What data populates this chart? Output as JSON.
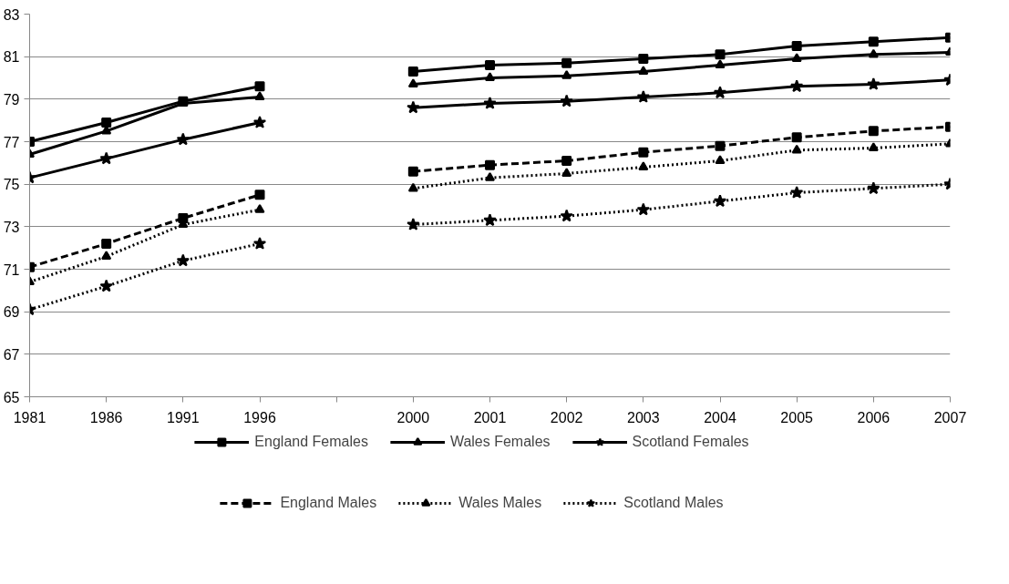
{
  "chart_data": {
    "type": "line",
    "categories": [
      "1981",
      "1986",
      "1991",
      "1996",
      null,
      "2000",
      "2001",
      "2002",
      "2003",
      "2004",
      "2005",
      "2006",
      "2007"
    ],
    "ylim": [
      65,
      83
    ],
    "yticks": [
      65,
      67,
      69,
      71,
      73,
      75,
      77,
      79,
      81,
      83
    ],
    "grid": "y",
    "legend": "bottom",
    "series": [
      {
        "name": "England Females",
        "color": "#000000",
        "marker": "square",
        "line_style": "solid",
        "values": [
          77.0,
          77.9,
          78.9,
          79.6,
          null,
          80.3,
          80.6,
          80.7,
          80.9,
          81.1,
          81.5,
          81.7,
          81.9
        ]
      },
      {
        "name": "Wales Females",
        "color": "#000000",
        "marker": "triangle",
        "line_style": "solid",
        "values": [
          76.4,
          77.5,
          78.8,
          79.1,
          null,
          79.7,
          80.0,
          80.1,
          80.3,
          80.6,
          80.9,
          81.1,
          81.2
        ]
      },
      {
        "name": "Scotland Females",
        "color": "#000000",
        "marker": "star",
        "line_style": "solid",
        "values": [
          75.3,
          76.2,
          77.1,
          77.9,
          null,
          78.6,
          78.8,
          78.9,
          79.1,
          79.3,
          79.6,
          79.7,
          79.9
        ]
      },
      {
        "name": "England Males",
        "color": "#000000",
        "marker": "square",
        "line_style": "dashed",
        "values": [
          71.1,
          72.2,
          73.4,
          74.5,
          null,
          75.6,
          75.9,
          76.1,
          76.5,
          76.8,
          77.2,
          77.5,
          77.7
        ]
      },
      {
        "name": "Wales Males",
        "color": "#000000",
        "marker": "triangle",
        "line_style": "dotted",
        "values": [
          70.4,
          71.6,
          73.1,
          73.8,
          null,
          74.8,
          75.3,
          75.5,
          75.8,
          76.1,
          76.6,
          76.7,
          76.9
        ]
      },
      {
        "name": "Scotland Males",
        "color": "#000000",
        "marker": "star",
        "line_style": "dotted",
        "values": [
          69.1,
          70.2,
          71.4,
          72.2,
          null,
          73.1,
          73.3,
          73.5,
          73.8,
          74.2,
          74.6,
          74.8,
          75.0
        ]
      }
    ]
  }
}
